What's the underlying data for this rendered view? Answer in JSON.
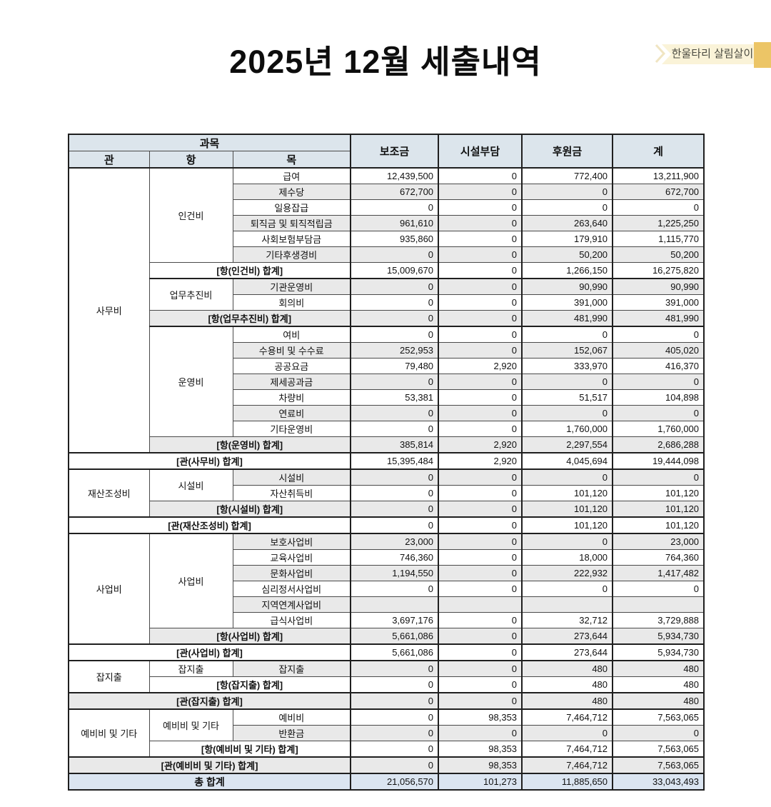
{
  "badge": {
    "label": "한울타리 살림살이"
  },
  "title": "2025년 12월 세출내역",
  "colors": {
    "header_bg": "#dce5ec",
    "stripe_gray": "#e9e9e9",
    "total_row_blue": "#dbe5f1",
    "ribbon_light": "#faf3d8",
    "ribbon_fold": "#ecc566",
    "ribbon_chevron": "#f0e5c2",
    "border_thin": "#4a4a4a",
    "border_thick": "#1f1f1f"
  },
  "table": {
    "header": {
      "gwamok": "과목",
      "gwan": "관",
      "hang": "항",
      "mok": "목",
      "amount_cols": [
        "보조금",
        "시설부담",
        "후원금",
        "계"
      ]
    },
    "rows": [
      {
        "kind": "item",
        "gwan": {
          "t": "사무비",
          "rs": 18
        },
        "hang": {
          "t": "인건비",
          "rs": 6
        },
        "mok": "급여",
        "vals": [
          "12,439,500",
          "0",
          "772,400",
          "13,211,900"
        ]
      },
      {
        "kind": "item",
        "mok": "제수당",
        "vals": [
          "672,700",
          "0",
          "0",
          "672,700"
        ]
      },
      {
        "kind": "item",
        "mok": "일용잡급",
        "vals": [
          "0",
          "0",
          "0",
          "0"
        ]
      },
      {
        "kind": "item",
        "mok": "퇴직금 및 퇴직적립금",
        "vals": [
          "961,610",
          "0",
          "263,640",
          "1,225,250"
        ]
      },
      {
        "kind": "item",
        "mok": "사회보험부담금",
        "vals": [
          "935,860",
          "0",
          "179,910",
          "1,115,770"
        ]
      },
      {
        "kind": "item",
        "mok": "기타후생경비",
        "vals": [
          "0",
          "0",
          "50,200",
          "50,200"
        ]
      },
      {
        "kind": "hsum",
        "label": "[항(인건비) 합계]",
        "span": 2,
        "vals": [
          "15,009,670",
          "0",
          "1,266,150",
          "16,275,820"
        ]
      },
      {
        "kind": "item",
        "hang": {
          "t": "업무추진비",
          "rs": 2
        },
        "mok": "기관운영비",
        "vals": [
          "0",
          "0",
          "90,990",
          "90,990"
        ]
      },
      {
        "kind": "item",
        "mok": "회의비",
        "vals": [
          "0",
          "0",
          "391,000",
          "391,000"
        ]
      },
      {
        "kind": "hsum",
        "label": "[항(업무추진비) 합계]",
        "span": 2,
        "vals": [
          "0",
          "0",
          "481,990",
          "481,990"
        ]
      },
      {
        "kind": "item",
        "hang": {
          "t": "운영비",
          "rs": 7
        },
        "mok": "여비",
        "vals": [
          "0",
          "0",
          "0",
          "0"
        ]
      },
      {
        "kind": "item",
        "mok": "수용비 및 수수료",
        "vals": [
          "252,953",
          "0",
          "152,067",
          "405,020"
        ]
      },
      {
        "kind": "item",
        "mok": "공공요금",
        "vals": [
          "79,480",
          "2,920",
          "333,970",
          "416,370"
        ]
      },
      {
        "kind": "item",
        "mok": "제세공과금",
        "vals": [
          "0",
          "0",
          "0",
          "0"
        ]
      },
      {
        "kind": "item",
        "mok": "차량비",
        "vals": [
          "53,381",
          "0",
          "51,517",
          "104,898"
        ]
      },
      {
        "kind": "item",
        "mok": "연료비",
        "vals": [
          "0",
          "0",
          "0",
          "0"
        ]
      },
      {
        "kind": "item",
        "mok": "기타운영비",
        "vals": [
          "0",
          "0",
          "1,760,000",
          "1,760,000"
        ]
      },
      {
        "kind": "hsum",
        "label": "[항(운영비) 합계]",
        "span": 2,
        "vals": [
          "385,814",
          "2,920",
          "2,297,554",
          "2,686,288"
        ]
      },
      {
        "kind": "gsum",
        "label": "[관(사무비) 합계]",
        "span": 3,
        "vals": [
          "15,395,484",
          "2,920",
          "4,045,694",
          "19,444,098"
        ]
      },
      {
        "kind": "item",
        "gwan": {
          "t": "재산조성비",
          "rs": 3
        },
        "hang": {
          "t": "시설비",
          "rs": 2
        },
        "mok": "시설비",
        "vals": [
          "0",
          "0",
          "0",
          "0"
        ]
      },
      {
        "kind": "item",
        "mok": "자산취득비",
        "vals": [
          "0",
          "0",
          "101,120",
          "101,120"
        ]
      },
      {
        "kind": "hsum",
        "label": "[항(시설비) 합계]",
        "span": 2,
        "vals": [
          "0",
          "0",
          "101,120",
          "101,120"
        ]
      },
      {
        "kind": "gsum",
        "label": "[관(재산조성비) 합계]",
        "span": 3,
        "vals": [
          "0",
          "0",
          "101,120",
          "101,120"
        ]
      },
      {
        "kind": "item",
        "gwan": {
          "t": "사업비",
          "rs": 7
        },
        "hang": {
          "t": "사업비",
          "rs": 6
        },
        "mok": "보호사업비",
        "vals": [
          "23,000",
          "0",
          "0",
          "23,000"
        ]
      },
      {
        "kind": "item",
        "mok": "교육사업비",
        "vals": [
          "746,360",
          "0",
          "18,000",
          "764,360"
        ]
      },
      {
        "kind": "item",
        "mok": "문화사업비",
        "vals": [
          "1,194,550",
          "0",
          "222,932",
          "1,417,482"
        ]
      },
      {
        "kind": "item",
        "mok": "심리정서사업비",
        "vals": [
          "0",
          "0",
          "0",
          "0"
        ]
      },
      {
        "kind": "item",
        "mok": "지역연계사업비",
        "vals": [
          "",
          "",
          "",
          ""
        ]
      },
      {
        "kind": "item",
        "mok": "급식사업비",
        "vals": [
          "3,697,176",
          "0",
          "32,712",
          "3,729,888"
        ]
      },
      {
        "kind": "hsum",
        "label": "[항(사업비) 합계]",
        "span": 2,
        "vals": [
          "5,661,086",
          "0",
          "273,644",
          "5,934,730"
        ]
      },
      {
        "kind": "gsum",
        "label": "[관(사업비) 합계]",
        "span": 3,
        "vals": [
          "5,661,086",
          "0",
          "273,644",
          "5,934,730"
        ]
      },
      {
        "kind": "item",
        "gwan": {
          "t": "잡지출",
          "rs": 2
        },
        "hang": {
          "t": "잡지출",
          "rs": 1
        },
        "mok": "잡지출",
        "vals": [
          "0",
          "0",
          "480",
          "480"
        ]
      },
      {
        "kind": "hsum",
        "label": "[항(잡지출) 합계]",
        "span": 2,
        "vals": [
          "0",
          "0",
          "480",
          "480"
        ]
      },
      {
        "kind": "gsum",
        "label": "[관(잡지출) 합계]",
        "span": 3,
        "vals": [
          "0",
          "0",
          "480",
          "480"
        ]
      },
      {
        "kind": "item",
        "gwan": {
          "t": "예비비 및 기타",
          "rs": 3
        },
        "hang": {
          "t": "예비비 및 기타",
          "rs": 2
        },
        "mok": "예비비",
        "vals": [
          "0",
          "98,353",
          "7,464,712",
          "7,563,065"
        ]
      },
      {
        "kind": "item",
        "mok": "반환금",
        "vals": [
          "0",
          "0",
          "0",
          "0"
        ]
      },
      {
        "kind": "hsum",
        "label": "[항(예비비 및 기타) 합계]",
        "span": 2,
        "vals": [
          "0",
          "98,353",
          "7,464,712",
          "7,563,065"
        ]
      },
      {
        "kind": "gsum",
        "label": "[관(예비비 및 기타) 합계]",
        "span": 3,
        "vals": [
          "0",
          "98,353",
          "7,464,712",
          "7,563,065"
        ]
      },
      {
        "kind": "total",
        "label": "총 합계",
        "span": 3,
        "vals": [
          "21,056,570",
          "101,273",
          "11,885,650",
          "33,043,493"
        ]
      }
    ]
  }
}
